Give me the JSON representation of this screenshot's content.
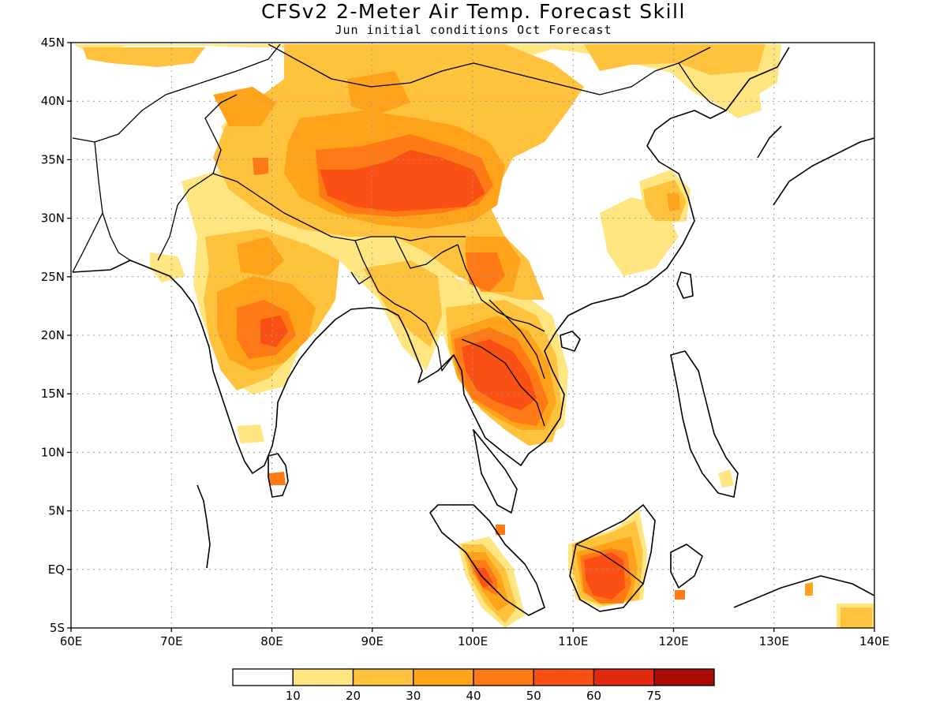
{
  "title": "CFSv2 2-Meter Air Temp. Forecast Skill",
  "subtitle": "Jun initial conditions  Oct Forecast",
  "map": {
    "lon_range": [
      60,
      140
    ],
    "lat_range": [
      -5,
      45
    ],
    "grid": "dotted",
    "x_ticks": [
      "60E",
      "70E",
      "80E",
      "90E",
      "100E",
      "110E",
      "120E",
      "130E",
      "140E"
    ],
    "y_ticks": [
      "45N",
      "40N",
      "35N",
      "30N",
      "25N",
      "20N",
      "15N",
      "10N",
      "5N",
      "EQ",
      "5S"
    ]
  },
  "colorbar": {
    "levels": [
      "10",
      "20",
      "30",
      "40",
      "50",
      "60",
      "75"
    ],
    "colors": [
      "#ffffff",
      "#ffe680",
      "#ffc23d",
      "#ffa31a",
      "#ff7a14",
      "#fa5014",
      "#e12a0f",
      "#a80a05"
    ]
  },
  "skill_regions": [
    {
      "name": "tibet-plateau",
      "level": 50
    },
    {
      "name": "indochina",
      "level": 50
    },
    {
      "name": "central-india",
      "level": 40
    },
    {
      "name": "borneo",
      "level": 50
    },
    {
      "name": "sumatra",
      "level": 50
    },
    {
      "name": "mongolia",
      "level": 20
    }
  ]
}
